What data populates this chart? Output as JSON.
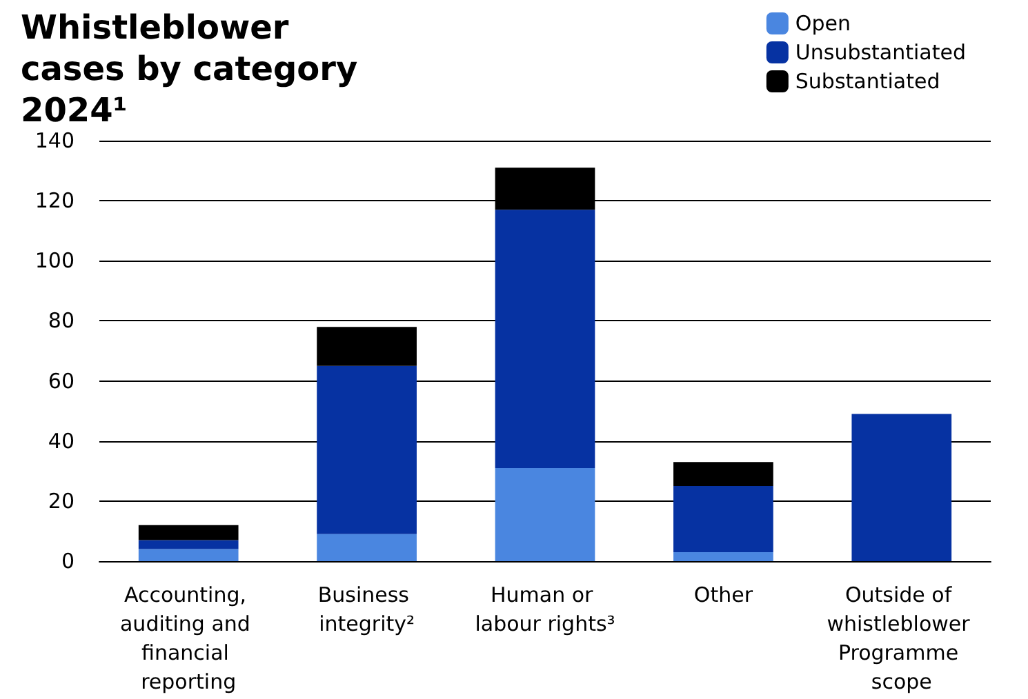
{
  "chart_data": {
    "type": "bar",
    "title": "Whistleblower cases by category 2024¹",
    "categories": [
      "Accounting, auditing and financial reporting",
      "Business integrity²",
      "Human or labour rights³",
      "Other",
      "Outside of whistleblower Programme scope"
    ],
    "series": [
      {
        "name": "Open",
        "color": "#4a86e0",
        "values": [
          4,
          9,
          31,
          3,
          0
        ]
      },
      {
        "name": "Unsubstantiated",
        "color": "#0632a2",
        "values": [
          3,
          56,
          86,
          22,
          49
        ]
      },
      {
        "name": "Substantiated",
        "color": "#000000",
        "values": [
          5,
          13,
          14,
          8,
          0
        ]
      }
    ],
    "stacked": true,
    "ylim": [
      0,
      140
    ],
    "yticks": [
      0,
      20,
      40,
      60,
      80,
      100,
      120,
      140
    ],
    "grid": "y",
    "legend": "top right"
  }
}
